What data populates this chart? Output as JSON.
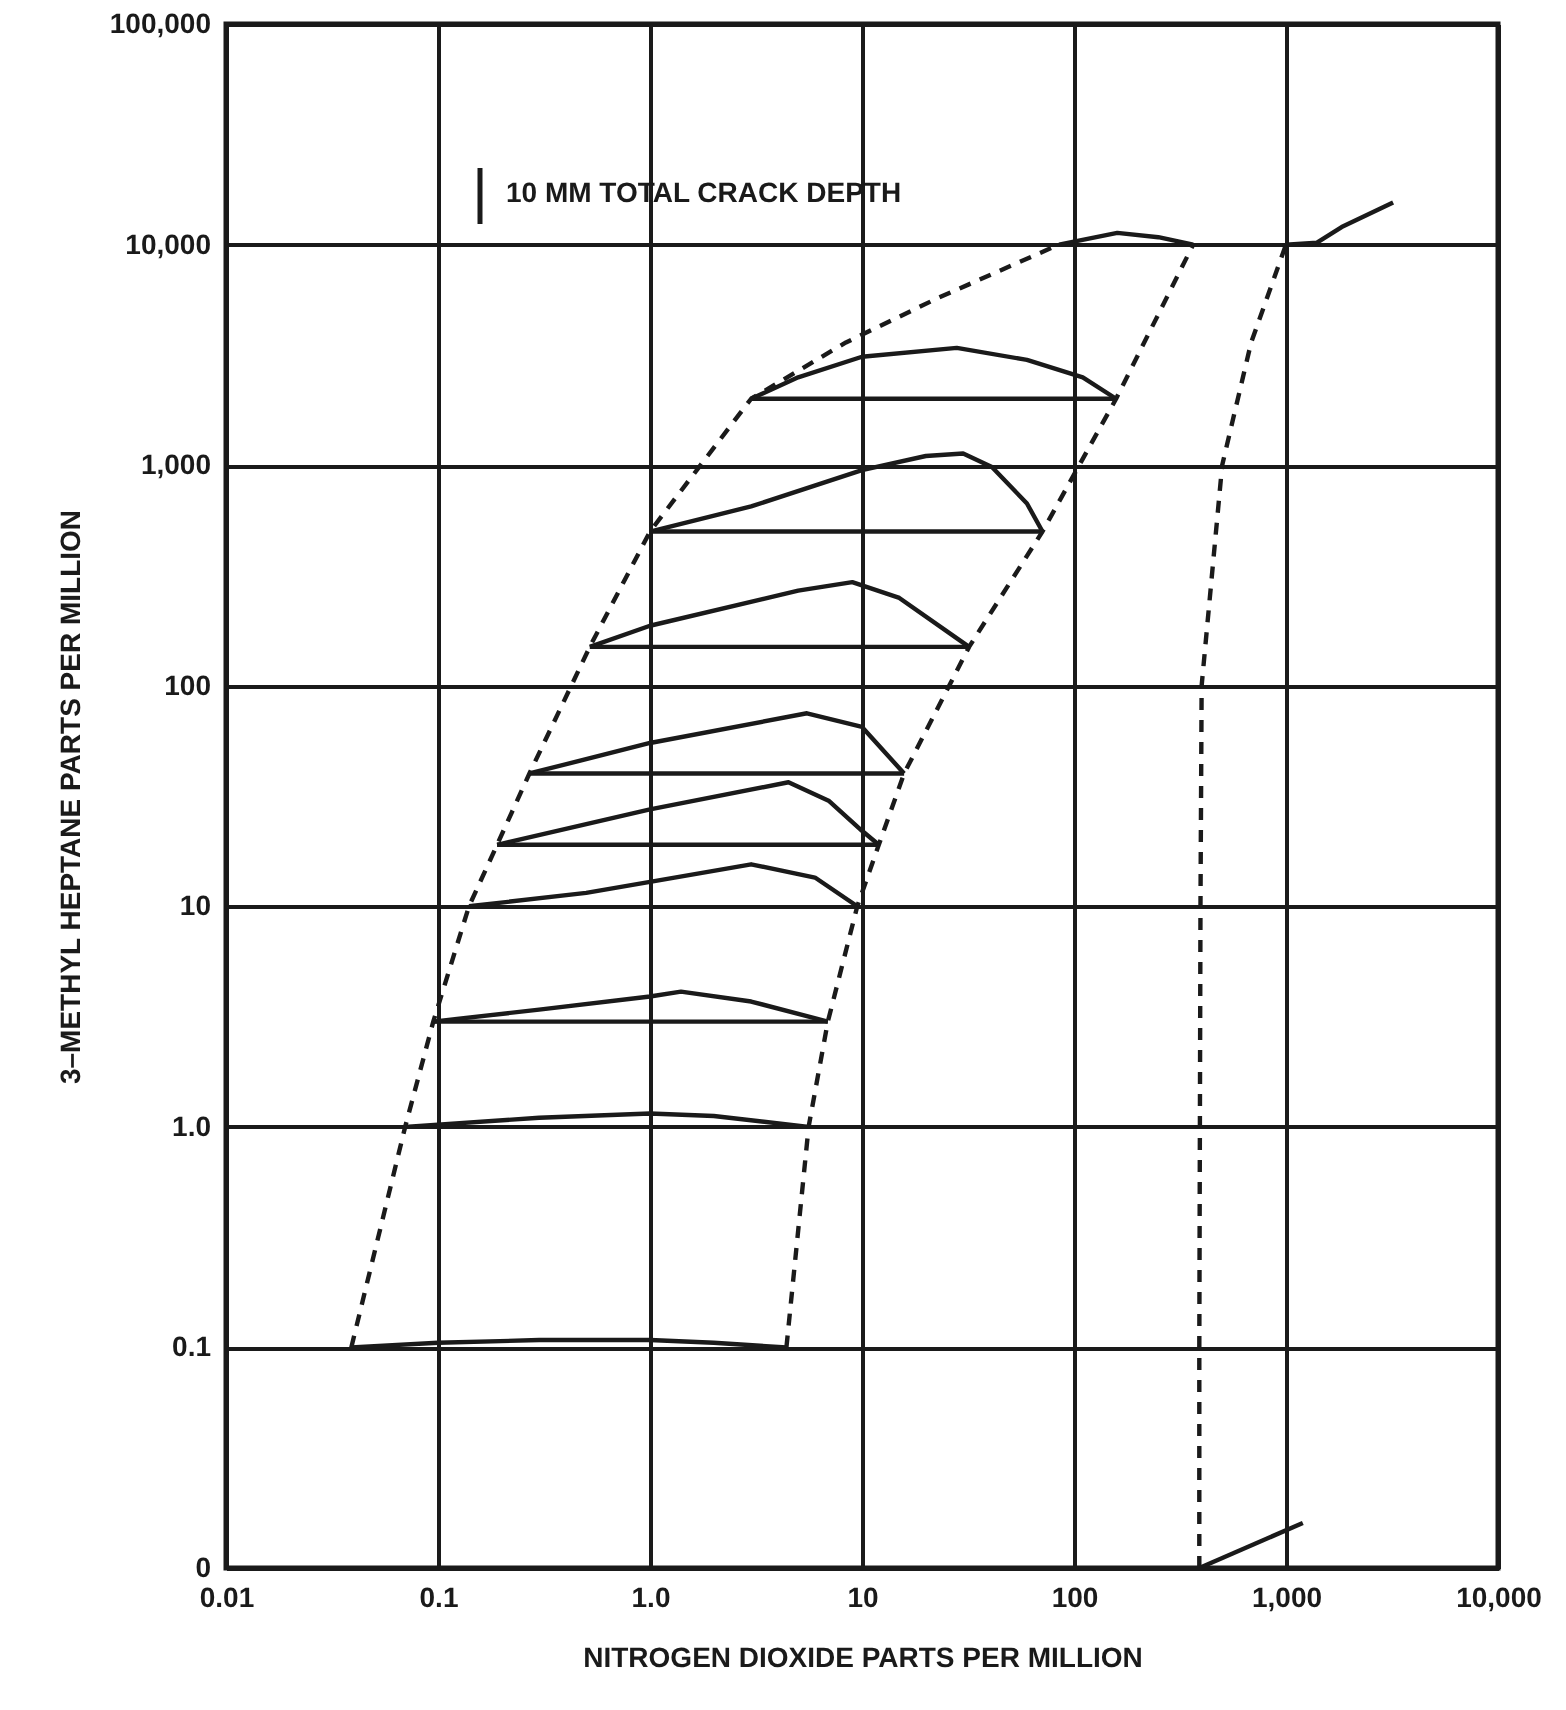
{
  "chart_data": {
    "type": "line",
    "xlabel": "NITROGEN  DIOXIDE PARTS PER MILLION",
    "ylabel": "3–METHYL HEPTANE PARTS PER MILLION",
    "annotations": [
      "10 MM TOTAL CRACK DEPTH"
    ],
    "xlim": [
      0.01,
      10000
    ],
    "xticks": [
      0.01,
      0.1,
      {
        "value": 1,
        "label": "1.0"
      },
      10,
      100,
      {
        "value": 1000,
        "label": "1,000"
      },
      {
        "value": 10000,
        "label": "10,000"
      }
    ],
    "ylim": [
      0.01,
      100000
    ],
    "yticks": [
      {
        "value": 0.01,
        "label": "0"
      },
      0.1,
      {
        "value": 1,
        "label": "1.0"
      },
      10,
      100,
      {
        "value": 1000,
        "label": "1,000"
      },
      {
        "value": 10000,
        "label": "10,000"
      },
      {
        "value": 100000,
        "label": "100,000"
      }
    ],
    "log": "xy",
    "grid": true,
    "marker": "none",
    "series": [
      {
        "color": "#1a1a1a",
        "line_style": "solid",
        "x": [
          0.039,
          0.1,
          0.3,
          1,
          2,
          4.4
        ],
        "values": [
          0.1,
          0.105,
          0.108,
          0.108,
          0.105,
          0.1
        ]
      },
      {
        "color": "#1a1a1a",
        "line_style": "solid",
        "x": [
          0.07,
          0.3,
          1,
          2,
          5.6
        ],
        "values": [
          1,
          1.1,
          1.15,
          1.12,
          1
        ]
      },
      {
        "color": "#1a1a1a",
        "line_style": "solid",
        "x": [
          0.095,
          0.3,
          1,
          1.4,
          3,
          6.9
        ],
        "values": [
          3,
          3.4,
          3.9,
          4.1,
          3.7,
          3
        ]
      },
      {
        "color": "#1a1a1a",
        "line_style": "solid",
        "x": [
          0.095,
          6.9
        ],
        "values": [
          3,
          3
        ]
      },
      {
        "color": "#1a1a1a",
        "line_style": "solid",
        "x": [
          0.14,
          0.5,
          1,
          3,
          6,
          9.5
        ],
        "values": [
          10,
          11.5,
          12.9,
          15.5,
          13.5,
          10
        ]
      },
      {
        "color": "#1a1a1a",
        "line_style": "solid",
        "x": [
          0.19,
          1,
          4.5,
          7,
          10,
          12
        ],
        "values": [
          19,
          27.5,
          36.5,
          30,
          22,
          19
        ]
      },
      {
        "color": "#1a1a1a",
        "line_style": "solid",
        "x": [
          0.19,
          12
        ],
        "values": [
          19,
          19
        ]
      },
      {
        "color": "#1a1a1a",
        "line_style": "solid",
        "x": [
          0.27,
          1,
          5.5,
          10,
          15.8
        ],
        "values": [
          40,
          55,
          75,
          65,
          40
        ]
      },
      {
        "color": "#1a1a1a",
        "line_style": "solid",
        "x": [
          0.27,
          15.8
        ],
        "values": [
          40,
          40
        ]
      },
      {
        "color": "#1a1a1a",
        "line_style": "solid",
        "x": [
          0.52,
          1,
          5,
          9,
          15,
          32
        ],
        "values": [
          150,
          187,
          270,
          295,
          250,
          150
        ]
      },
      {
        "color": "#1a1a1a",
        "line_style": "solid",
        "x": [
          0.52,
          32
        ],
        "values": [
          150,
          150
        ]
      },
      {
        "color": "#1a1a1a",
        "line_style": "solid",
        "x": [
          1,
          3,
          10,
          20,
          30,
          41,
          60,
          71
        ],
        "values": [
          500,
          650,
          950,
          1100,
          1130,
          980,
          670,
          500
        ]
      },
      {
        "color": "#1a1a1a",
        "line_style": "solid",
        "x": [
          1,
          71
        ],
        "values": [
          500,
          500
        ]
      },
      {
        "color": "#1a1a1a",
        "line_style": "solid",
        "x": [
          3,
          5,
          10,
          28,
          60,
          110,
          158
        ],
        "values": [
          2000,
          2500,
          3100,
          3400,
          3000,
          2500,
          2000
        ]
      },
      {
        "color": "#1a1a1a",
        "line_style": "solid",
        "x": [
          3,
          158
        ],
        "values": [
          2000,
          2000
        ]
      },
      {
        "color": "#1a1a1a",
        "line_style": "solid",
        "x": [
          85,
          160,
          250,
          365
        ],
        "values": [
          10000,
          11300,
          10800,
          10000
        ]
      },
      {
        "color": "#1a1a1a",
        "line_style": "solid",
        "x": [
          1000,
          1400,
          1830,
          3200
        ],
        "values": [
          10000,
          10200,
          12000,
          15500
        ]
      },
      {
        "color": "#1a1a1a",
        "line_style": "solid",
        "x": [
          390,
          1200
        ],
        "values": [
          0.01,
          0.016
        ]
      },
      {
        "color": "#1a1a1a",
        "line_style": "dashed",
        "x": [
          0.039,
          0.07,
          0.095,
          0.14,
          0.19,
          0.27,
          0.52,
          1,
          3,
          8.4,
          22.6,
          85
        ],
        "values": [
          0.1,
          1,
          3,
          10,
          19,
          40,
          150,
          500,
          2000,
          3600,
          5700,
          10000
        ]
      },
      {
        "color": "#1a1a1a",
        "line_style": "dashed",
        "x": [
          4.4,
          5.6,
          6.9,
          9.5,
          12,
          15.8,
          32,
          71,
          158,
          365
        ],
        "values": [
          0.1,
          1,
          3,
          10,
          19,
          40,
          150,
          500,
          2000,
          10000
        ]
      },
      {
        "color": "#1a1a1a",
        "line_style": "dashed",
        "x": [
          390,
          390,
          395,
          400,
          500,
          685,
          1000
        ],
        "values": [
          0.01,
          0.1,
          10,
          100,
          1000,
          3600,
          10000
        ]
      }
    ]
  }
}
